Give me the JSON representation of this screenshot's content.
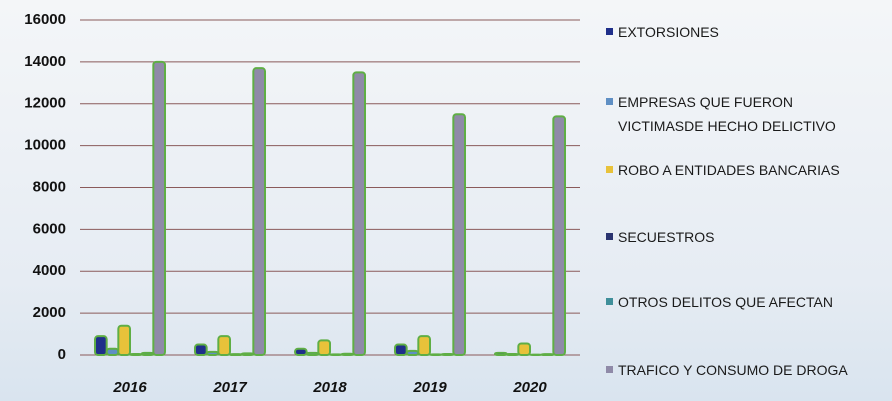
{
  "chart_data": {
    "type": "bar",
    "categories": [
      "2016",
      "2017",
      "2018",
      "2019",
      "2020"
    ],
    "series": [
      {
        "name": "EXTORSIONES",
        "color": "#1f2f8a",
        "values": [
          900,
          500,
          300,
          500,
          100
        ]
      },
      {
        "name": "EMPRESAS QUE FUERON VICTIMASDE HECHO DELICTIVO",
        "color": "#5f8fc4",
        "values": [
          300,
          150,
          100,
          200,
          50
        ]
      },
      {
        "name": "ROBO A ENTIDADES BANCARIAS",
        "color": "#e8c23a",
        "values": [
          1400,
          900,
          700,
          900,
          550
        ]
      },
      {
        "name": "SECUESTROS",
        "color": "#2a3470",
        "values": [
          50,
          40,
          30,
          30,
          20
        ]
      },
      {
        "name": "OTROS DELITOS QUE AFECTAN",
        "color": "#3f8f9a",
        "values": [
          100,
          80,
          60,
          50,
          40
        ]
      },
      {
        "name": "TRAFICO Y CONSUMO DE DROGA",
        "color": "#8f8aa8",
        "values": [
          14000,
          13700,
          13500,
          11500,
          11400
        ]
      }
    ],
    "ylim": [
      0,
      16000
    ],
    "yticks": [
      0,
      2000,
      4000,
      6000,
      8000,
      10000,
      12000,
      14000,
      16000
    ],
    "grid": true,
    "legend": "right"
  }
}
